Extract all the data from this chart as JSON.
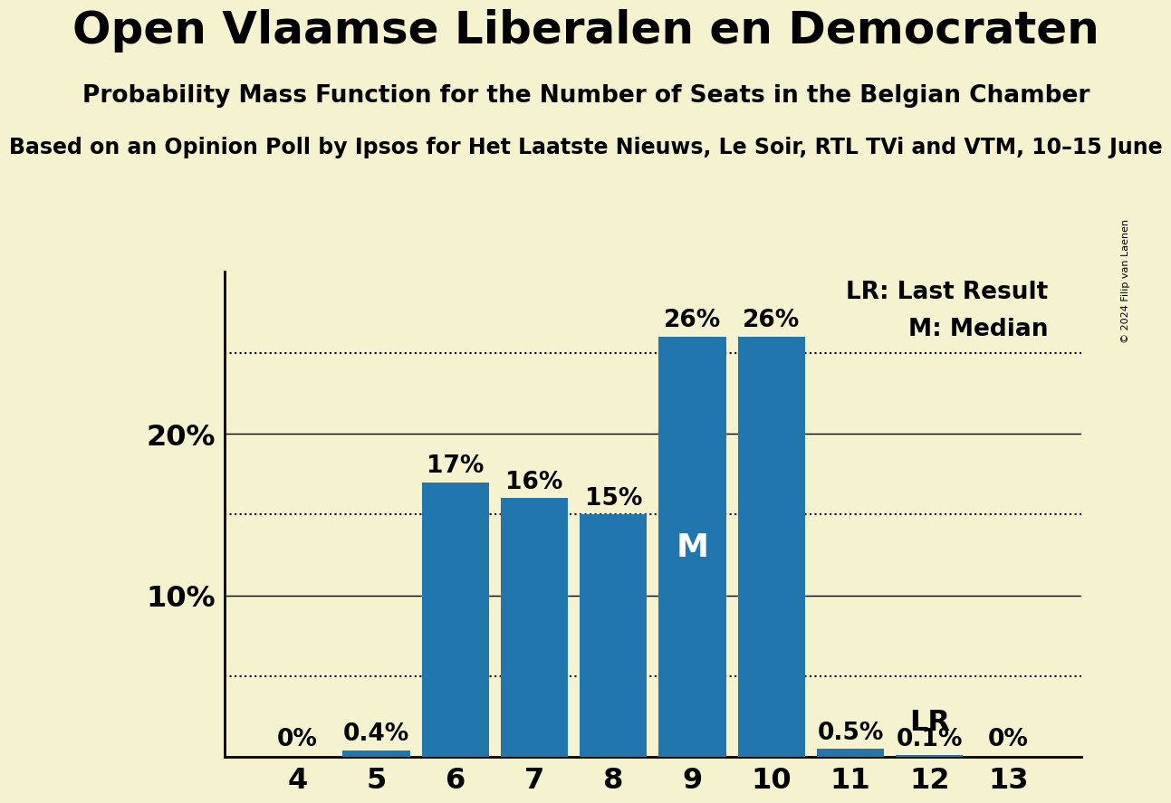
{
  "title": "Open Vlaamse Liberalen en Democraten",
  "subtitle": "Probability Mass Function for the Number of Seats in the Belgian Chamber",
  "subsubtitle": "Based on an Opinion Poll by Ipsos for Het Laatste Nieuws, Le Soir, RTL TVi and VTM, 10–15 June",
  "copyright": "© 2024 Filip van Laenen",
  "categories": [
    4,
    5,
    6,
    7,
    8,
    9,
    10,
    11,
    12,
    13
  ],
  "values": [
    0.0,
    0.4,
    17.0,
    16.0,
    15.0,
    26.0,
    26.0,
    0.5,
    0.1,
    0.0
  ],
  "bar_color": "#2176ae",
  "background_color": "#f5f2d0",
  "median_seat": 9,
  "last_result_seat": 12,
  "bar_labels": [
    "0%",
    "0.4%",
    "17%",
    "16%",
    "15%",
    "26%",
    "26%",
    "0.5%",
    "0.1%",
    "0%"
  ],
  "yticks": [
    10,
    20
  ],
  "ytick_labels": [
    "10%",
    "20%"
  ],
  "dotted_lines": [
    5,
    15,
    25
  ],
  "ylim": [
    0,
    30
  ],
  "legend_lr_text": "LR: Last Result",
  "legend_m_text": "M: Median",
  "title_fontsize": 36,
  "subtitle_fontsize": 19,
  "subsubtitle_fontsize": 17,
  "tick_fontsize": 23,
  "bar_label_fontsize": 19,
  "legend_fontsize": 19,
  "median_label_fontsize": 26,
  "lr_label_fontsize": 23
}
